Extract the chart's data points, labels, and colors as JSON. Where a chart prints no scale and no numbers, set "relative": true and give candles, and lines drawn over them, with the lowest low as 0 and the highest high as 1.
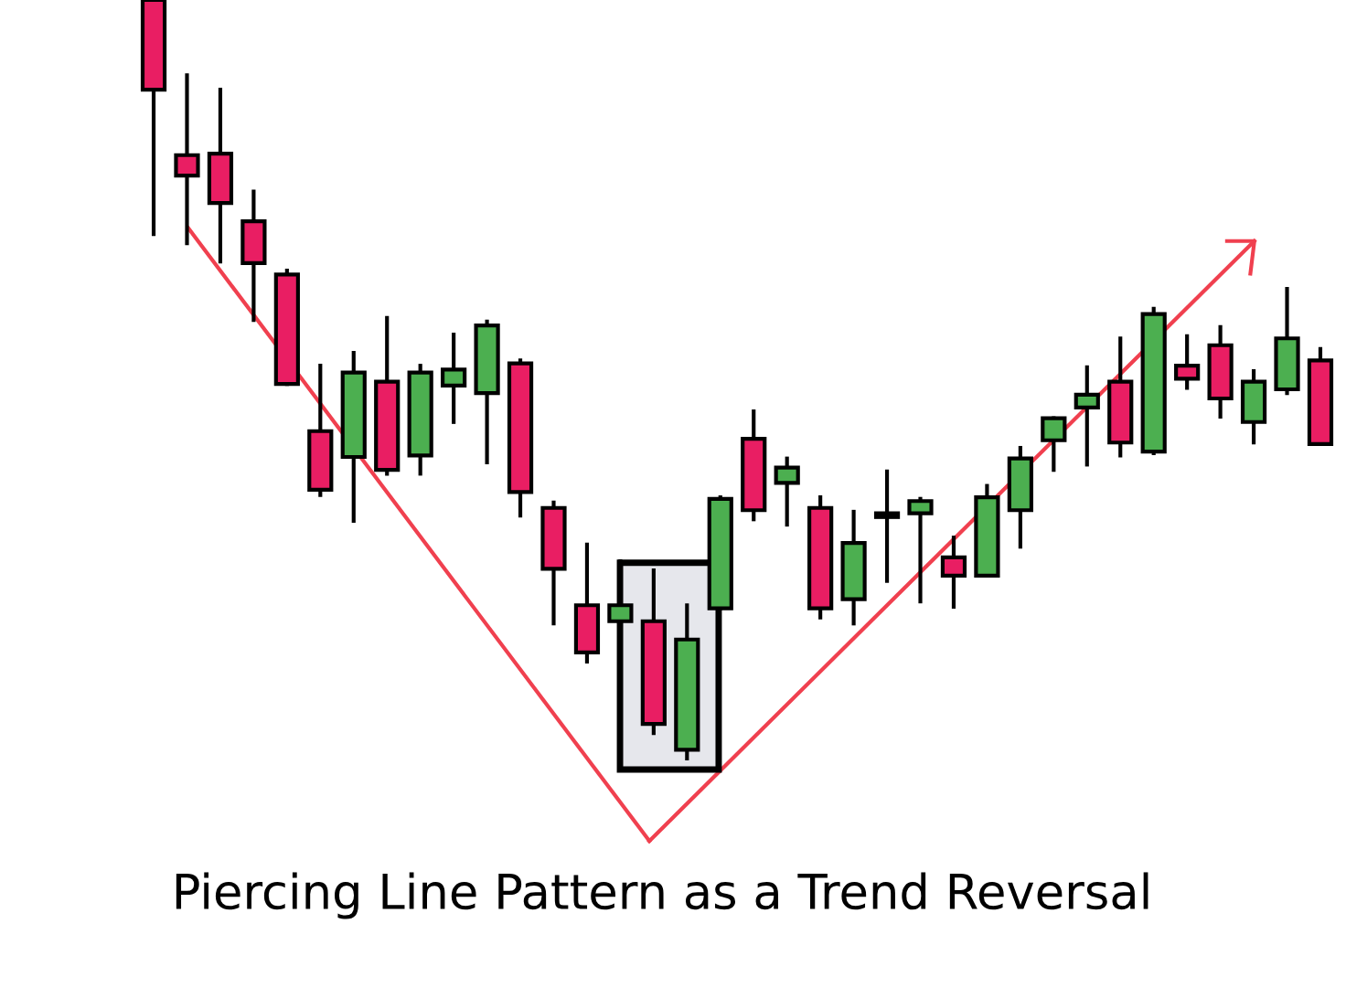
{
  "chart_data": {
    "type": "candlestick",
    "relative": true,
    "title": "Piercing Line Pattern as a Trend Reversal",
    "categories": [
      null,
      null,
      null,
      null,
      null,
      null,
      null,
      null,
      null,
      null,
      null,
      null,
      null,
      null,
      null,
      null,
      null,
      null,
      null,
      null,
      null,
      null,
      null,
      null,
      null,
      null,
      null,
      null,
      null,
      null,
      null,
      null,
      null,
      null,
      null,
      null
    ],
    "ohlc": [
      [
        1,
        1,
        0.692,
        0.882
      ],
      [
        0.796,
        0.901,
        0.68,
        0.769
      ],
      [
        0.798,
        0.882,
        0.656,
        0.733
      ],
      [
        0.709,
        0.748,
        0.579,
        0.654
      ],
      [
        0.639,
        0.644,
        0.495,
        0.495
      ],
      [
        0.433,
        0.519,
        0.349,
        0.356
      ],
      [
        0.399,
        0.536,
        0.315,
        0.51
      ],
      [
        0.498,
        0.582,
        0.377,
        0.382
      ],
      [
        0.401,
        0.519,
        0.377,
        0.51
      ],
      [
        0.493,
        0.56,
        0.445,
        0.514
      ],
      [
        0.483,
        0.577,
        0.392,
        0.572
      ],
      [
        0.522,
        0.526,
        0.322,
        0.353
      ],
      [
        0.332,
        0.339,
        0.18,
        0.252
      ],
      [
        0.204,
        0.284,
        0.13,
        0.142
      ],
      [
        0.183,
        0.262,
        0.183,
        0.204
      ],
      [
        0.183,
        0.25,
        0.036,
        0.048
      ],
      [
        0.014,
        0.204,
        0,
        0.159
      ],
      [
        0.2,
        0.346,
        0.2,
        0.344
      ],
      [
        0.423,
        0.459,
        0.317,
        0.329
      ],
      [
        0.365,
        0.397,
        0.31,
        0.385
      ],
      [
        0.332,
        0.346,
        0.188,
        0.2
      ],
      [
        0.212,
        0.327,
        0.18,
        0.286
      ],
      [
        0.32,
        0.38,
        0.236,
        0.325
      ],
      [
        0.325,
        0.344,
        0.209,
        0.341
      ],
      [
        0.267,
        0.293,
        0.202,
        0.243
      ],
      [
        0.243,
        0.361,
        0.243,
        0.346
      ],
      [
        0.329,
        0.411,
        0.281,
        0.397
      ],
      [
        0.421,
        0.45,
        0.382,
        0.45
      ],
      [
        0.464,
        0.517,
        0.389,
        0.481
      ],
      [
        0.498,
        0.555,
        0.401,
        0.418
      ],
      [
        0.406,
        0.594,
        0.404,
        0.587
      ],
      [
        0.519,
        0.558,
        0.49,
        0.502
      ],
      [
        0.546,
        0.57,
        0.452,
        0.476
      ],
      [
        0.445,
        0.512,
        0.418,
        0.498
      ],
      [
        0.488,
        0.62,
        0.483,
        0.555
      ],
      [
        0.526,
        0.541,
        0.416,
        0.416
      ]
    ],
    "colors": [
      "#e91e63",
      "#e91e63",
      "#e91e63",
      "#e91e63",
      "#e91e63",
      "#e91e63",
      "#4caf50",
      "#e91e63",
      "#4caf50",
      "#4caf50",
      "#4caf50",
      "#e91e63",
      "#e91e63",
      "#e91e63",
      "#4caf50",
      "#e91e63",
      "#4caf50",
      "#4caf50",
      "#e91e63",
      "#4caf50",
      "#e91e63",
      "#4caf50",
      "#4caf50",
      "#4caf50",
      "#e91e63",
      "#4caf50",
      "#4caf50",
      "#4caf50",
      "#4caf50",
      "#e91e63",
      "#4caf50",
      "#e91e63",
      "#e91e63",
      "#4caf50",
      "#4caf50",
      "#e91e63"
    ]
  }
}
